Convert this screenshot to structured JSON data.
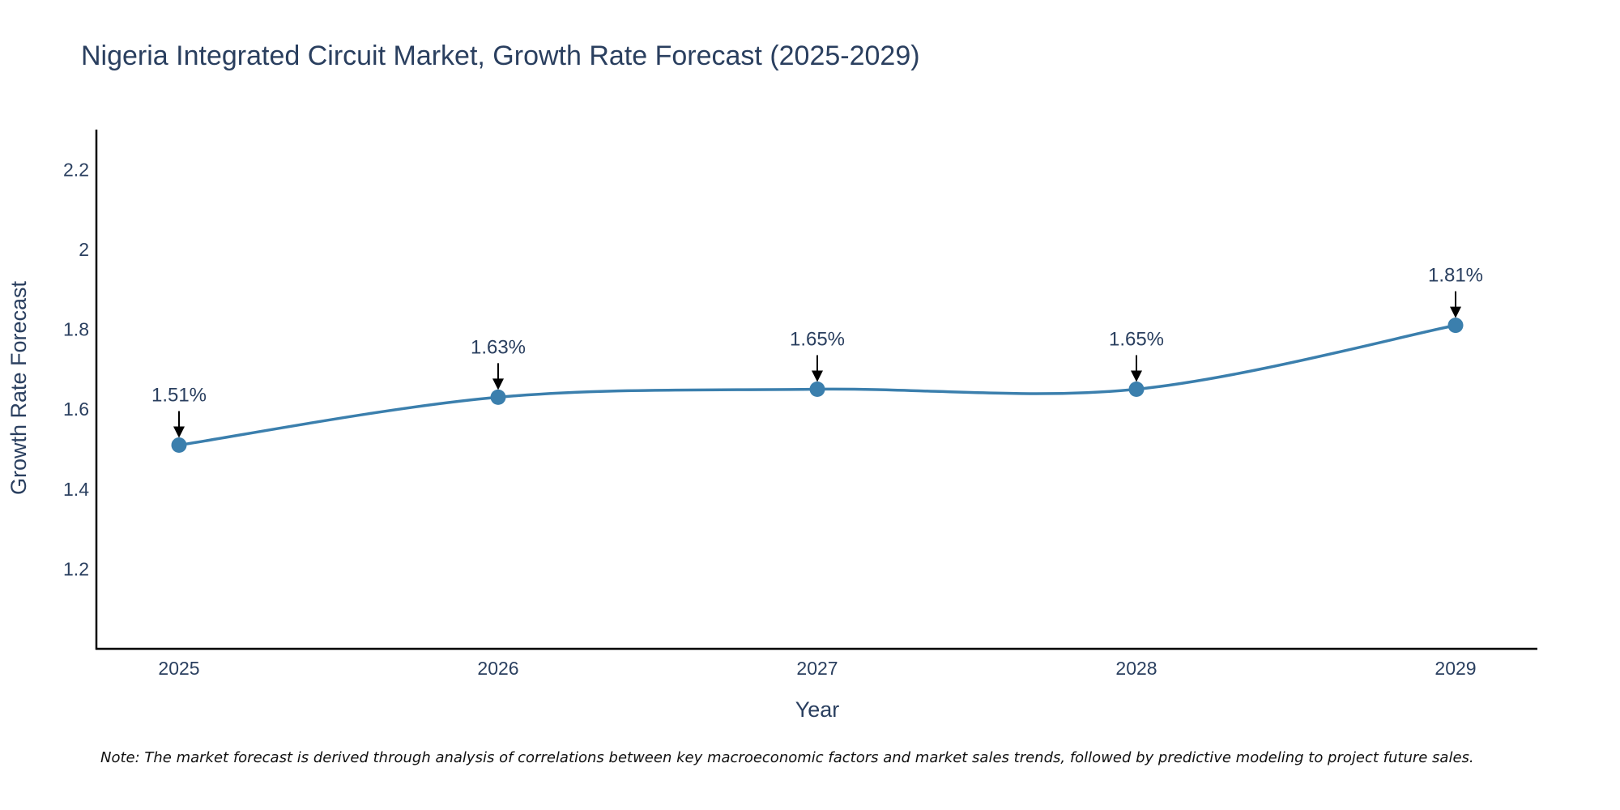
{
  "chart_data": {
    "type": "line",
    "title": "Nigeria Integrated Circuit Market, Growth Rate Forecast (2025-2029)",
    "xlabel": "Year",
    "ylabel": "Growth Rate Forecast",
    "categories": [
      "2025",
      "2026",
      "2027",
      "2028",
      "2029"
    ],
    "values": [
      1.51,
      1.63,
      1.65,
      1.65,
      1.81
    ],
    "data_labels": [
      "1.51%",
      "1.63%",
      "1.65%",
      "1.65%",
      "1.81%"
    ],
    "ylim": [
      1.0,
      2.3
    ],
    "yticks": [
      1.2,
      1.4,
      1.6,
      1.8,
      2,
      2.2
    ],
    "ytick_labels": [
      "1.2",
      "1.4",
      "1.6",
      "1.8",
      "2",
      "2.2"
    ],
    "grid": false,
    "line_color": "#3b7fad",
    "marker_color": "#3b7fad",
    "note": "Note: The market forecast is derived through analysis of correlations between key macroeconomic factors and market sales trends, followed by predictive modeling to project future sales."
  }
}
